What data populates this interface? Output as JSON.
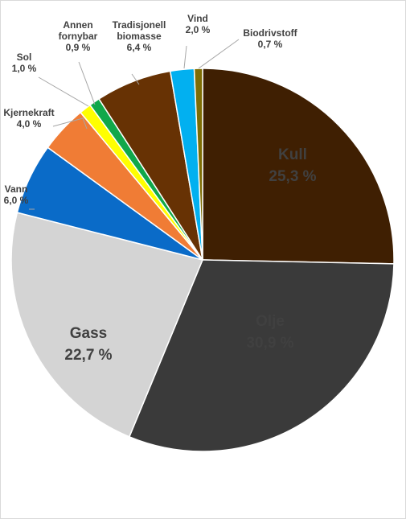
{
  "chart_data": {
    "type": "pie",
    "title": "",
    "slices": [
      {
        "label": "Kull",
        "value": 25.3,
        "value_text": "25,3 %",
        "color": "#3f1f02",
        "label_color": "#ffffff"
      },
      {
        "label": "Olje",
        "value": 30.9,
        "value_text": "30,9 %",
        "color": "#3a3a3a",
        "label_color": "#ffffff"
      },
      {
        "label": "Gass",
        "value": 22.7,
        "value_text": "22,7 %",
        "color": "#d4d4d4",
        "label_color": "#262626"
      },
      {
        "label": "Vann",
        "value": 6.0,
        "value_text": "6,0 %",
        "color": "#0a6bc8",
        "label_color": "#404040"
      },
      {
        "label": "Kjernekraft",
        "value": 4.0,
        "value_text": "4,0 %",
        "color": "#f07c35",
        "label_color": "#404040"
      },
      {
        "label": "Sol",
        "value": 1.0,
        "value_text": "1,0 %",
        "color": "#ffff00",
        "label_color": "#404040"
      },
      {
        "label": "Annen fornybar",
        "value": 0.9,
        "value_text": "0,9 %",
        "color": "#10a84a",
        "label_color": "#404040"
      },
      {
        "label": "Tradisjonell biomasse",
        "value": 6.4,
        "value_text": "6,4 %",
        "color": "#673204",
        "label_color": "#404040"
      },
      {
        "label": "Vind",
        "value": 2.0,
        "value_text": "2,0 %",
        "color": "#02b0f0",
        "label_color": "#404040"
      },
      {
        "label": "Biodrivstoff",
        "value": 0.7,
        "value_text": "0,7 %",
        "color": "#7e6d05",
        "label_color": "#404040"
      }
    ]
  }
}
